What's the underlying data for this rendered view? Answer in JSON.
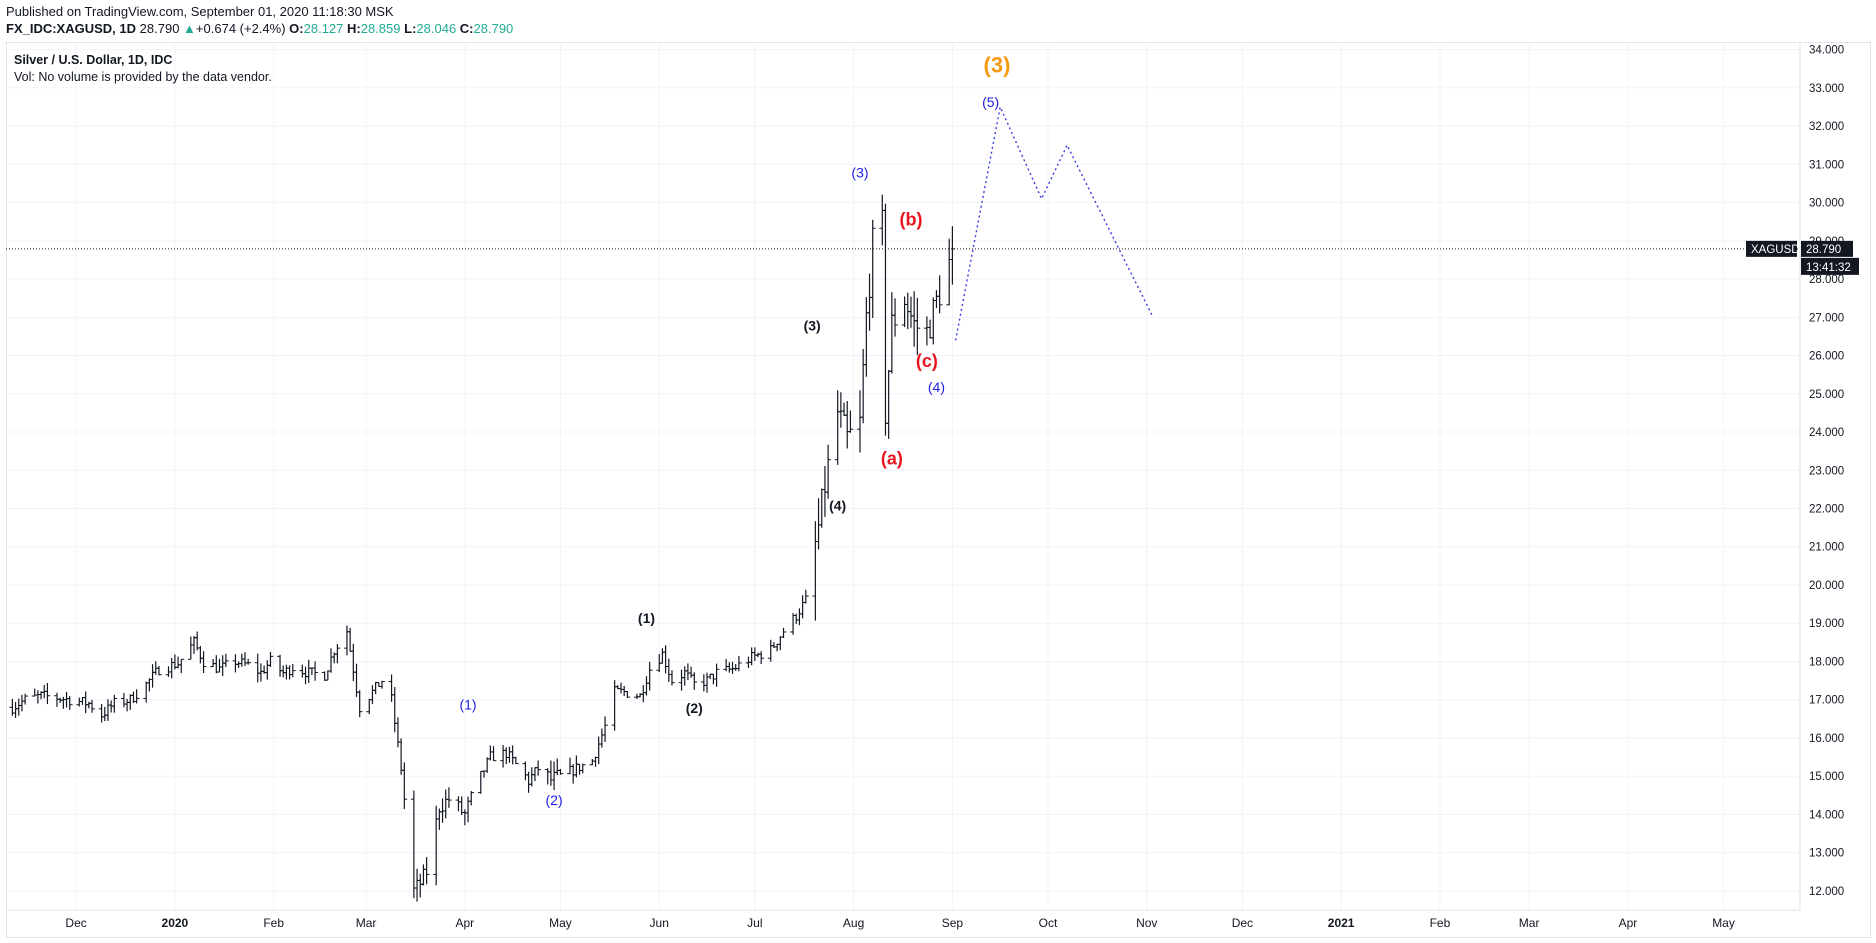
{
  "header": {
    "published": "Published on TradingView.com, September 01, 2020 11:18:30 MSK",
    "symbol": "FX_IDC:XAGUSD, 1D",
    "last": "28.790",
    "change": "+0.674 (+2.4%)",
    "open_label": "O:",
    "open": "28.127",
    "high_label": "H:",
    "high": "28.859",
    "low_label": "L:",
    "low": "28.046",
    "close_label": "C:",
    "close": "28.790"
  },
  "legend": {
    "title": "Silver / U.S. Dollar, 1D, IDC",
    "volume": "Vol: No volume is provided by the data vendor."
  },
  "price_badge": {
    "symbol": "XAGUSD",
    "price": "28.790",
    "countdown": "13:41:32"
  },
  "colors": {
    "bars": "#131722",
    "blue": "#1e1ee6",
    "red": "#e8141e",
    "orange": "#f59a12",
    "grid": "#f0f3fa"
  },
  "chart_data": {
    "type": "bar",
    "subtype": "ohlc",
    "ylim": [
      11.5,
      34.2
    ],
    "yticks": [
      "12.000",
      "13.000",
      "14.000",
      "15.000",
      "16.000",
      "17.000",
      "18.000",
      "19.000",
      "20.000",
      "21.000",
      "22.000",
      "23.000",
      "24.000",
      "25.000",
      "26.000",
      "27.000",
      "28.000",
      "29.000",
      "30.000",
      "31.000",
      "32.000",
      "33.000",
      "34.000"
    ],
    "xticks": [
      {
        "label": "Dec",
        "x": "2019-12-01"
      },
      {
        "label": "2020",
        "x": "2020-01-01",
        "bold": true
      },
      {
        "label": "Feb",
        "x": "2020-02-01"
      },
      {
        "label": "Mar",
        "x": "2020-03-01"
      },
      {
        "label": "Apr",
        "x": "2020-04-01"
      },
      {
        "label": "May",
        "x": "2020-05-01"
      },
      {
        "label": "Jun",
        "x": "2020-06-01"
      },
      {
        "label": "Jul",
        "x": "2020-07-01"
      },
      {
        "label": "Aug",
        "x": "2020-08-01"
      },
      {
        "label": "Sep",
        "x": "2020-09-01"
      },
      {
        "label": "Oct",
        "x": "2020-10-01"
      },
      {
        "label": "Nov",
        "x": "2020-11-01"
      },
      {
        "label": "Dec",
        "x": "2020-12-01"
      },
      {
        "label": "2021",
        "x": "2021-01-01",
        "bold": true
      },
      {
        "label": "Feb",
        "x": "2021-02-01"
      },
      {
        "label": "Mar",
        "x": "2021-03-01"
      },
      {
        "label": "Apr",
        "x": "2021-04-01"
      },
      {
        "label": "May",
        "x": "2021-05-01"
      }
    ],
    "price_path": [
      [
        "2019-11-11",
        16.8
      ],
      [
        "2019-11-15",
        17.0
      ],
      [
        "2019-11-20",
        17.1
      ],
      [
        "2019-11-25",
        17.05
      ],
      [
        "2019-11-29",
        17.0
      ],
      [
        "2019-12-02",
        16.95
      ],
      [
        "2019-12-05",
        16.9
      ],
      [
        "2019-12-09",
        16.6
      ],
      [
        "2019-12-13",
        16.9
      ],
      [
        "2019-12-18",
        17.0
      ],
      [
        "2019-12-23",
        17.4
      ],
      [
        "2019-12-27",
        17.8
      ],
      [
        "2020-01-02",
        17.95
      ],
      [
        "2020-01-07",
        18.5
      ],
      [
        "2020-01-10",
        18.0
      ],
      [
        "2020-01-15",
        17.8
      ],
      [
        "2020-01-20",
        18.0
      ],
      [
        "2020-01-24",
        17.9
      ],
      [
        "2020-01-28",
        17.7
      ],
      [
        "2020-01-31",
        18.0
      ],
      [
        "2020-02-04",
        17.7
      ],
      [
        "2020-02-07",
        17.85
      ],
      [
        "2020-02-12",
        17.7
      ],
      [
        "2020-02-17",
        17.65
      ],
      [
        "2020-02-20",
        18.3
      ],
      [
        "2020-02-24",
        18.8
      ],
      [
        "2020-02-28",
        16.8
      ],
      [
        "2020-03-03",
        17.2
      ],
      [
        "2020-03-06",
        17.5
      ],
      [
        "2020-03-09",
        17.0
      ],
      [
        "2020-03-12",
        15.2
      ],
      [
        "2020-03-16",
        12.0
      ],
      [
        "2020-03-18",
        12.2
      ],
      [
        "2020-03-20",
        12.5
      ],
      [
        "2020-03-24",
        14.2
      ],
      [
        "2020-03-27",
        14.4
      ],
      [
        "2020-04-01",
        14.0
      ],
      [
        "2020-04-06",
        15.0
      ],
      [
        "2020-04-09",
        15.5
      ],
      [
        "2020-04-14",
        15.6
      ],
      [
        "2020-04-17",
        15.3
      ],
      [
        "2020-04-21",
        14.9
      ],
      [
        "2020-04-24",
        15.2
      ],
      [
        "2020-04-28",
        14.9
      ],
      [
        "2020-05-01",
        15.0
      ],
      [
        "2020-05-06",
        15.2
      ],
      [
        "2020-05-11",
        15.4
      ],
      [
        "2020-05-15",
        16.3
      ],
      [
        "2020-05-18",
        17.2
      ],
      [
        "2020-05-21",
        17.2
      ],
      [
        "2020-05-26",
        17.1
      ],
      [
        "2020-05-29",
        17.8
      ],
      [
        "2020-06-02",
        18.2
      ],
      [
        "2020-06-05",
        17.5
      ],
      [
        "2020-06-09",
        17.7
      ],
      [
        "2020-06-12",
        17.4
      ],
      [
        "2020-06-16",
        17.5
      ],
      [
        "2020-06-19",
        17.7
      ],
      [
        "2020-06-24",
        17.8
      ],
      [
        "2020-06-30",
        18.1
      ],
      [
        "2020-07-06",
        18.3
      ],
      [
        "2020-07-10",
        18.8
      ],
      [
        "2020-07-14",
        19.2
      ],
      [
        "2020-07-17",
        19.6
      ],
      [
        "2020-07-21",
        21.5
      ],
      [
        "2020-07-23",
        22.6
      ],
      [
        "2020-07-27",
        24.5
      ],
      [
        "2020-07-30",
        23.8
      ],
      [
        "2020-08-03",
        24.2
      ],
      [
        "2020-08-05",
        27.0
      ],
      [
        "2020-08-07",
        28.9
      ],
      [
        "2020-08-10",
        29.4
      ],
      [
        "2020-08-11",
        24.5
      ],
      [
        "2020-08-13",
        26.8
      ],
      [
        "2020-08-17",
        27.5
      ],
      [
        "2020-08-20",
        26.8
      ],
      [
        "2020-08-24",
        26.6
      ],
      [
        "2020-08-27",
        27.4
      ],
      [
        "2020-08-31",
        28.4
      ],
      [
        "2020-09-01",
        28.79
      ]
    ],
    "projection": [
      [
        "2020-09-02",
        26.4
      ],
      [
        "2020-09-16",
        32.5
      ],
      [
        "2020-09-29",
        30.1
      ],
      [
        "2020-10-07",
        31.5
      ],
      [
        "2020-11-03",
        27.0
      ]
    ],
    "last_price": 28.79,
    "wave_labels": [
      {
        "text": "(1)",
        "x": "2020-04-02",
        "y": 16.75,
        "color": "blue"
      },
      {
        "text": "(2)",
        "x": "2020-04-29",
        "y": 14.25,
        "color": "blue"
      },
      {
        "text": "(1)",
        "x": "2020-05-28",
        "y": 19.0,
        "color": "black"
      },
      {
        "text": "(2)",
        "x": "2020-06-12",
        "y": 16.65,
        "color": "black"
      },
      {
        "text": "(3)",
        "x": "2020-07-19",
        "y": 26.65,
        "color": "black"
      },
      {
        "text": "(4)",
        "x": "2020-07-27",
        "y": 21.95,
        "color": "black"
      },
      {
        "text": "(3)",
        "x": "2020-08-03",
        "y": 30.65,
        "color": "blue"
      },
      {
        "text": "(a)",
        "x": "2020-08-13",
        "y": 23.15,
        "color": "red"
      },
      {
        "text": "(b)",
        "x": "2020-08-19",
        "y": 29.4,
        "color": "red"
      },
      {
        "text": "(c)",
        "x": "2020-08-24",
        "y": 25.7,
        "color": "red"
      },
      {
        "text": "(4)",
        "x": "2020-08-27",
        "y": 25.05,
        "color": "blue"
      },
      {
        "text": "(5)",
        "x": "2020-09-13",
        "y": 32.5,
        "color": "blue"
      },
      {
        "text": "(3)",
        "x": "2020-09-15",
        "y": 33.4,
        "color": "orange"
      }
    ]
  }
}
